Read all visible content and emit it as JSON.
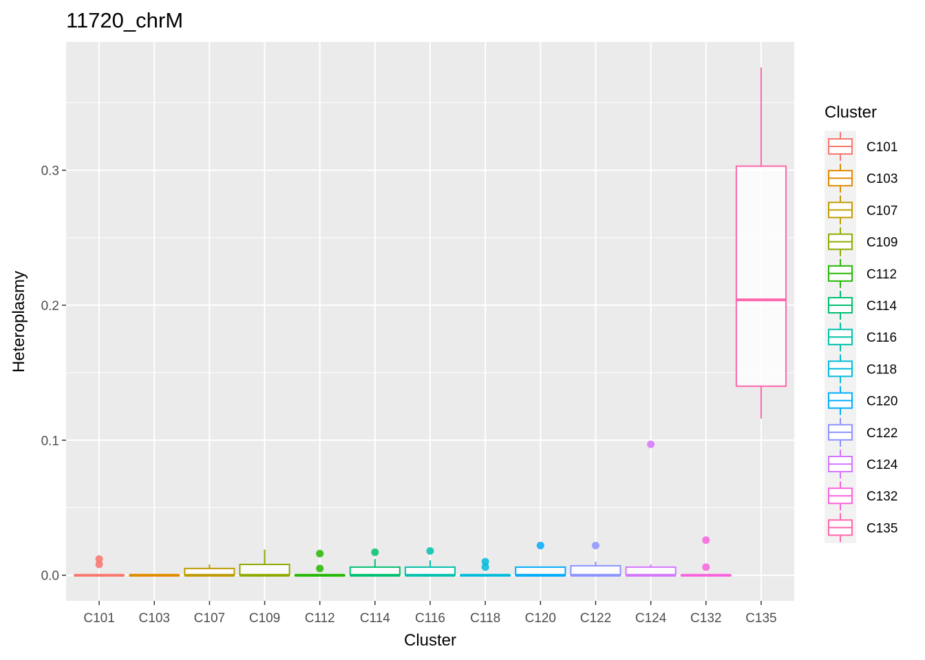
{
  "chart_data": {
    "type": "box",
    "title": "11720_chrM",
    "xlabel": "Cluster",
    "ylabel": "Heteroplasmy",
    "ylim": [
      -0.019,
      0.395
    ],
    "yticks": [
      "0.0",
      "0.1",
      "0.2",
      "0.3"
    ],
    "legend": {
      "title": "Cluster",
      "placement": "right"
    },
    "series": [
      {
        "name": "C101",
        "color": "#F8766D",
        "min": 0,
        "q1": 0,
        "median": 0,
        "q3": 0,
        "max": 0,
        "outliers": [
          0.012,
          0.008
        ]
      },
      {
        "name": "C103",
        "color": "#E18A00",
        "min": 0,
        "q1": 0,
        "median": 0,
        "q3": 0,
        "max": 0,
        "outliers": []
      },
      {
        "name": "C107",
        "color": "#BE9C00",
        "min": 0,
        "q1": 0,
        "median": 0,
        "q3": 0.005,
        "max": 0.008,
        "outliers": []
      },
      {
        "name": "C109",
        "color": "#8CAB00",
        "min": 0,
        "q1": 0,
        "median": 0,
        "q3": 0.008,
        "max": 0.019,
        "outliers": []
      },
      {
        "name": "C112",
        "color": "#24B700",
        "min": 0,
        "q1": 0,
        "median": 0,
        "q3": 0,
        "max": 0,
        "outliers": [
          0.016,
          0.005
        ]
      },
      {
        "name": "C114",
        "color": "#00BE70",
        "min": 0,
        "q1": 0,
        "median": 0,
        "q3": 0.006,
        "max": 0.012,
        "outliers": [
          0.017
        ]
      },
      {
        "name": "C116",
        "color": "#00C1AB",
        "min": 0,
        "q1": 0,
        "median": 0,
        "q3": 0.006,
        "max": 0.011,
        "outliers": [
          0.018
        ]
      },
      {
        "name": "C118",
        "color": "#00BBDA",
        "min": 0,
        "q1": 0,
        "median": 0,
        "q3": 0,
        "max": 0,
        "outliers": [
          0.01,
          0.006
        ]
      },
      {
        "name": "C120",
        "color": "#00ACFC",
        "min": 0,
        "q1": 0,
        "median": 0,
        "q3": 0.006,
        "max": 0.006,
        "outliers": [
          0.022
        ]
      },
      {
        "name": "C122",
        "color": "#8B93FF",
        "min": 0,
        "q1": 0,
        "median": 0,
        "q3": 0.007,
        "max": 0.01,
        "outliers": [
          0.022
        ]
      },
      {
        "name": "C124",
        "color": "#D575FE",
        "min": 0,
        "q1": 0,
        "median": 0,
        "q3": 0.006,
        "max": 0.008,
        "outliers": [
          0.097
        ]
      },
      {
        "name": "C132",
        "color": "#F962DD",
        "min": 0,
        "q1": 0,
        "median": 0,
        "q3": 0,
        "max": 0,
        "outliers": [
          0.026,
          0.006
        ]
      },
      {
        "name": "C135",
        "color": "#FF65AC",
        "min": 0.116,
        "q1": 0.14,
        "median": 0.204,
        "q3": 0.303,
        "max": 0.376,
        "outliers": []
      }
    ]
  }
}
